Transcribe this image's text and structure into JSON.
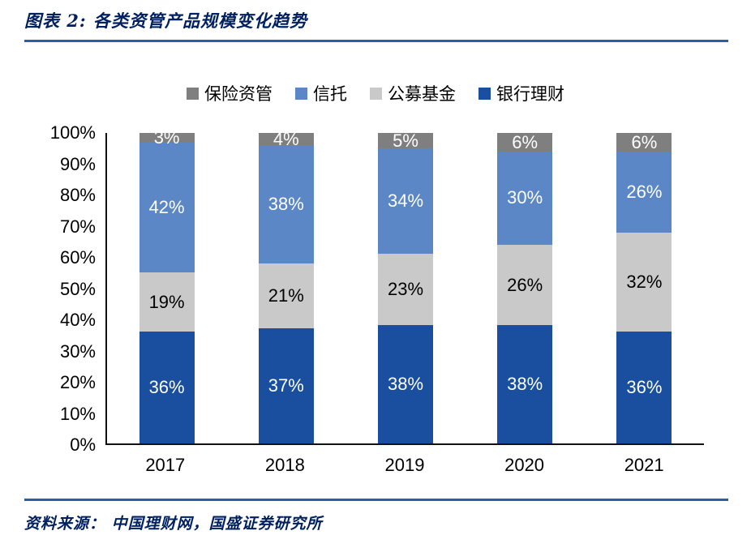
{
  "header": {
    "title": "图表 2:  各类资管产品规模变化趋势"
  },
  "footer": {
    "source": "资料来源：  中国理财网，国盛证券研究所"
  },
  "colors": {
    "accent_rule": "#2E5CA6",
    "title_text": "#002060",
    "axis_line": "#111111"
  },
  "chart_data": {
    "type": "bar",
    "subtype": "stacked-100-percent",
    "title": "各类资管产品规模变化趋势",
    "categories": [
      "2017",
      "2018",
      "2019",
      "2020",
      "2021"
    ],
    "series": [
      {
        "name": "银行理财",
        "color": "#1A4F9F",
        "label_color": "#FFFFFF",
        "values": [
          36,
          37,
          38,
          38,
          36
        ]
      },
      {
        "name": "公募基金",
        "color": "#C9C9C9",
        "label_color": "#000000",
        "values": [
          19,
          21,
          23,
          26,
          32
        ]
      },
      {
        "name": "信托",
        "color": "#5B87C7",
        "label_color": "#FFFFFF",
        "values": [
          42,
          38,
          34,
          30,
          26
        ]
      },
      {
        "name": "保险资管",
        "color": "#7F7F7F",
        "label_color": "#FFFFFF",
        "values": [
          3,
          4,
          5,
          6,
          6
        ]
      }
    ],
    "legend_order": [
      "保险资管",
      "信托",
      "公募基金",
      "银行理财"
    ],
    "legend_position": "top",
    "y_ticks": [
      "100%",
      "90%",
      "80%",
      "70%",
      "60%",
      "50%",
      "40%",
      "30%",
      "20%",
      "10%",
      "0%"
    ],
    "ylim": [
      0,
      100
    ],
    "grid": false,
    "value_suffix": "%"
  }
}
